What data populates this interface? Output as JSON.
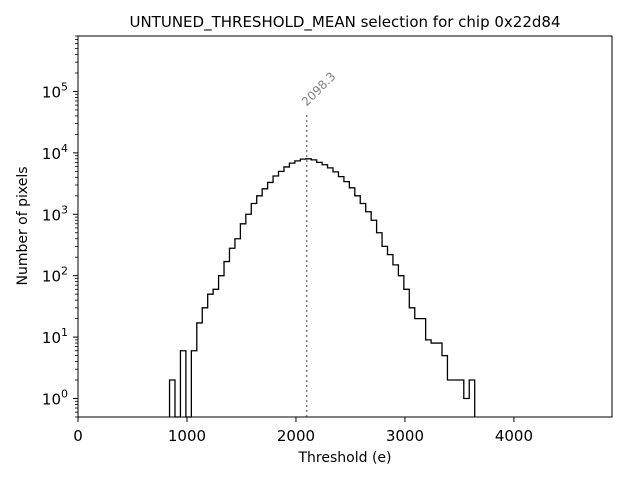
{
  "chart_data": {
    "type": "histogram",
    "title": "UNTUNED_THRESHOLD_MEAN selection for chip 0x22d84",
    "xlabel": "Threshold (e)",
    "ylabel": "Number of pixels",
    "xlim": [
      0,
      4900
    ],
    "ylim": [
      0.5,
      800000
    ],
    "yscale": "log",
    "grid": false,
    "legend": "none",
    "x_ticks": [
      {
        "value": 0,
        "label": "0"
      },
      {
        "value": 1000,
        "label": "1000"
      },
      {
        "value": 2000,
        "label": "2000"
      },
      {
        "value": 3000,
        "label": "3000"
      },
      {
        "value": 4000,
        "label": "4000"
      }
    ],
    "y_ticks": [
      {
        "value": 1,
        "base": "10",
        "exp": "0"
      },
      {
        "value": 10,
        "base": "10",
        "exp": "1"
      },
      {
        "value": 100,
        "base": "10",
        "exp": "2"
      },
      {
        "value": 1000,
        "base": "10",
        "exp": "3"
      },
      {
        "value": 10000,
        "base": "10",
        "exp": "4"
      },
      {
        "value": 100000,
        "base": "10",
        "exp": "5"
      }
    ],
    "bin_width": 50,
    "bin_start": 840,
    "counts": [
      2,
      0,
      6,
      0,
      6,
      17,
      30,
      50,
      60,
      100,
      170,
      280,
      400,
      700,
      1000,
      1500,
      2000,
      2600,
      3300,
      4200,
      5000,
      5900,
      6800,
      7400,
      7900,
      8000,
      7700,
      7000,
      6400,
      5700,
      4900,
      4100,
      3400,
      2700,
      2000,
      1500,
      1100,
      800,
      500,
      300,
      220,
      150,
      100,
      60,
      30,
      20,
      20,
      9,
      8,
      8,
      5,
      2,
      2,
      2,
      1,
      2
    ],
    "line_color": "#000000",
    "annotation": {
      "value": 2098.3,
      "label": "2098.3",
      "line_top": 45000,
      "color": "#808080"
    }
  }
}
